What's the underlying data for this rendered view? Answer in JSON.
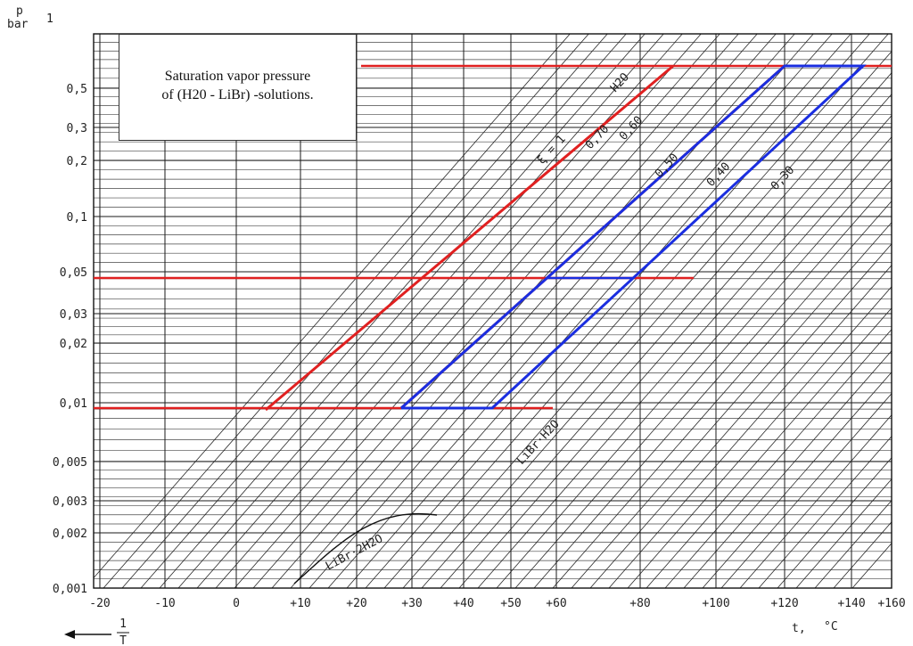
{
  "header": {
    "y_symbol": "p",
    "y_unit": "bar",
    "top_value": "1",
    "x_symbol": "t,",
    "x_unit": "°C",
    "reciprocal_arrow": "1/T"
  },
  "title_box": {
    "line1": "Saturation vapor pressure",
    "line2": "of (H20 - LiBr) -solutions."
  },
  "chart_data": {
    "type": "line",
    "title": "Saturation vapor pressure of (H20 - LiBr) -solutions.",
    "xlabel": "t, °C",
    "ylabel": "p bar",
    "y_scale": "log",
    "ylim": [
      0.001,
      1
    ],
    "xlim": [
      -20,
      160
    ],
    "grid": true,
    "y_ticks": [
      {
        "v": 0.5,
        "t": "0,5"
      },
      {
        "v": 0.3,
        "t": "0,3"
      },
      {
        "v": 0.2,
        "t": "0,2"
      },
      {
        "v": 0.1,
        "t": "0,1"
      },
      {
        "v": 0.05,
        "t": "0,05"
      },
      {
        "v": 0.03,
        "t": "0,03"
      },
      {
        "v": 0.02,
        "t": "0,02"
      },
      {
        "v": 0.01,
        "t": "0,01"
      },
      {
        "v": 0.005,
        "t": "0,005"
      },
      {
        "v": 0.003,
        "t": "0,003"
      },
      {
        "v": 0.002,
        "t": "0,002"
      },
      {
        "v": 0.001,
        "t": "0,001"
      }
    ],
    "x_ticks": [
      {
        "v": -20,
        "t": "-20"
      },
      {
        "v": -10,
        "t": "-10"
      },
      {
        "v": 0,
        "t": "0"
      },
      {
        "v": 10,
        "t": "+10"
      },
      {
        "v": 20,
        "t": "+20"
      },
      {
        "v": 30,
        "t": "+30"
      },
      {
        "v": 40,
        "t": "+40"
      },
      {
        "v": 50,
        "t": "+50"
      },
      {
        "v": 60,
        "t": "+60"
      },
      {
        "v": 80,
        "t": "+80"
      },
      {
        "v": 100,
        "t": "+100"
      },
      {
        "v": 120,
        "t": "+120"
      },
      {
        "v": 140,
        "t": "+140"
      },
      {
        "v": 160,
        "t": "+160"
      }
    ],
    "concentration_labels": [
      "ξ = 1",
      "H2O",
      "0,70",
      "0,60",
      "0,50",
      "0,40",
      "0,30"
    ],
    "region_labels": [
      "LiBr·H2O",
      "LiBr·2H2O"
    ],
    "colors": {
      "red": "#e02020",
      "blue": "#1a2ee0",
      "grid": "#1a1a1a"
    },
    "series": [
      {
        "color": "#e02020",
        "points": [
          [
            5,
            0.0087
          ],
          [
            88,
            0.65
          ],
          [
            123,
            0.65
          ],
          [
            28,
            0.0092
          ],
          [
            -20,
            0.0092
          ],
          [
            60,
            0.0092
          ]
        ]
      },
      {
        "color": "#1a2ee0",
        "points": [
          [
            28,
            0.0092
          ],
          [
            45,
            0.0092
          ],
          [
            147,
            0.65
          ],
          [
            120,
            0.65
          ],
          [
            28,
            0.0092
          ]
        ]
      }
    ],
    "red_pressure_levels": [
      0.65,
      0.045,
      0.0092
    ],
    "blue_pressure_levels": [
      0.045
    ]
  }
}
